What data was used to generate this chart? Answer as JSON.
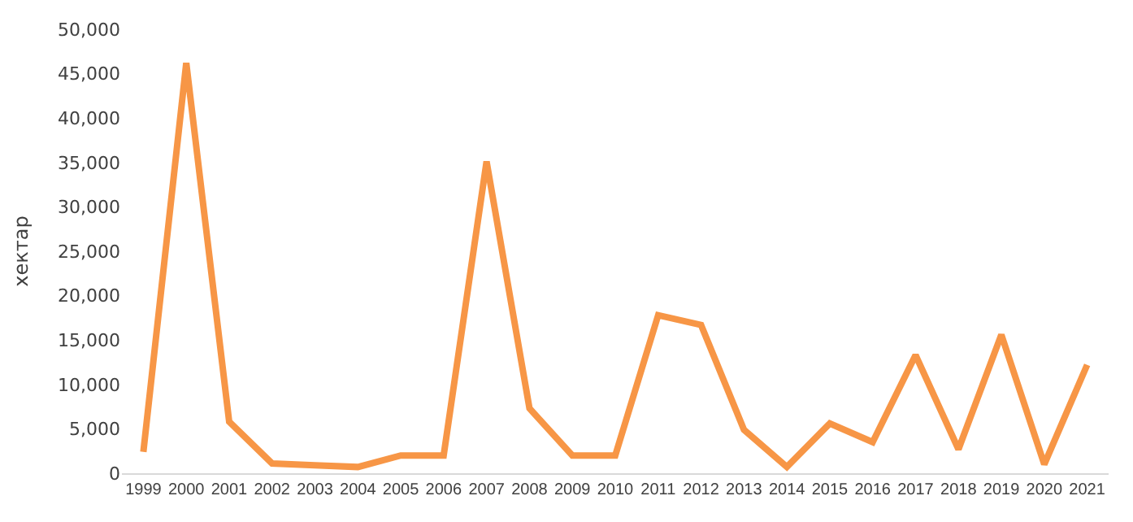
{
  "chart_data": {
    "type": "line",
    "ylabel": "хектар",
    "categories": [
      "1999",
      "2000",
      "2001",
      "2002",
      "2003",
      "2004",
      "2005",
      "2006",
      "2007",
      "2008",
      "2009",
      "2010",
      "2011",
      "2012",
      "2013",
      "2014",
      "2015",
      "2016",
      "2017",
      "2018",
      "2019",
      "2020",
      "2021"
    ],
    "series": [
      {
        "color": "#f79646",
        "values": [
          2400,
          46200,
          5800,
          1100,
          900,
          700,
          2000,
          2000,
          35100,
          7300,
          2000,
          2000,
          17800,
          16700,
          4900,
          700,
          5600,
          3500,
          13300,
          2700,
          15600,
          1000,
          12200
        ]
      }
    ],
    "ylim": [
      0,
      50000
    ],
    "yticks": [
      {
        "value": 0,
        "label": "0"
      },
      {
        "value": 5000,
        "label": "5,000"
      },
      {
        "value": 10000,
        "label": "10,000"
      },
      {
        "value": 15000,
        "label": "15,000"
      },
      {
        "value": 20000,
        "label": "20,000"
      },
      {
        "value": 25000,
        "label": "25,000"
      },
      {
        "value": 30000,
        "label": "30,000"
      },
      {
        "value": 35000,
        "label": "35,000"
      },
      {
        "value": 40000,
        "label": "40,000"
      },
      {
        "value": 45000,
        "label": "45,000"
      },
      {
        "value": 50000,
        "label": "50,000"
      }
    ],
    "marker": "none",
    "line_style": "solid"
  }
}
